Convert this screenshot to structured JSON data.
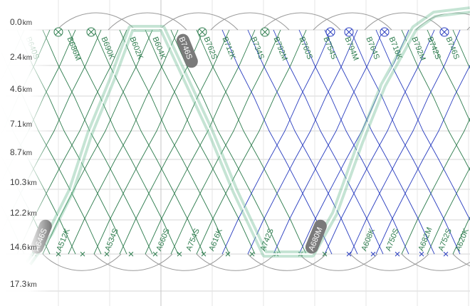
{
  "distance_axis": [
    {
      "value": "0.0",
      "unit": "km"
    },
    {
      "value": "2.4",
      "unit": "km"
    },
    {
      "value": "4.6",
      "unit": "km"
    },
    {
      "value": "7.1",
      "unit": "km"
    },
    {
      "value": "8.7",
      "unit": "km"
    },
    {
      "value": "10.3",
      "unit": "km"
    },
    {
      "value": "12.2",
      "unit": "km"
    },
    {
      "value": "14.6",
      "unit": "km"
    },
    {
      "value": "17.3",
      "unit": "km"
    }
  ],
  "top_trains": [
    {
      "label": "B640S",
      "color": "#2f7d4f"
    },
    {
      "label": "B686M",
      "color": "#2f7d4f"
    },
    {
      "label": "B690K",
      "color": "#2f7d4f"
    },
    {
      "label": "B602K",
      "color": "#2f7d4f"
    },
    {
      "label": "B604K",
      "color": "#2f7d4f"
    },
    {
      "label": "B746S",
      "color": "#ffffff",
      "badge": true
    },
    {
      "label": "B762S",
      "color": "#2f7d4f"
    },
    {
      "label": "B712K",
      "color": "#2f7d4f"
    },
    {
      "label": "B734S",
      "color": "#2f7d4f"
    },
    {
      "label": "B792M",
      "color": "#2f7d4f"
    },
    {
      "label": "B760S",
      "color": "#2f7d4f"
    },
    {
      "label": "B754S",
      "color": "#2f7d4f"
    },
    {
      "label": "B794M",
      "color": "#2f7d4f"
    },
    {
      "label": "B764S",
      "color": "#2f7d4f"
    },
    {
      "label": "B716K",
      "color": "#2f7d4f"
    },
    {
      "label": "B792M",
      "color": "#2f7d4f"
    },
    {
      "label": "B742S",
      "color": "#2f7d4f"
    },
    {
      "label": "B746S",
      "color": "#2f7d4f"
    }
  ],
  "bottom_trains": [
    {
      "label": "A646S",
      "color": "#ffffff",
      "badge": true
    },
    {
      "label": "A512K",
      "color": "#2f7d4f"
    },
    {
      "label": "A534S",
      "color": "#2f7d4f"
    },
    {
      "label": "A660S",
      "color": "#2f7d4f"
    },
    {
      "label": "A754S",
      "color": "#2f7d4f"
    },
    {
      "label": "A616K",
      "color": "#2f7d4f"
    },
    {
      "label": "A742S",
      "color": "#2f7d4f"
    },
    {
      "label": "A680M",
      "color": "#ffffff",
      "badge": true
    },
    {
      "label": "A608K",
      "color": "#2f7d4f"
    },
    {
      "label": "A750S",
      "color": "#2f7d4f"
    },
    {
      "label": "A682M",
      "color": "#2f7d4f"
    },
    {
      "label": "A752S",
      "color": "#2f7d4f"
    },
    {
      "label": "A620K",
      "color": "#2f7d4f"
    }
  ],
  "colors": {
    "green_line": "#2f7d4f",
    "blue_line": "#2b3fc0",
    "highlight_glow": "#7fc4a0",
    "highlight_line": "#ffffff",
    "badge_fill": "#7a7a7a",
    "grid": "#d4d4d4",
    "turnaround": "#9a9a9a"
  }
}
